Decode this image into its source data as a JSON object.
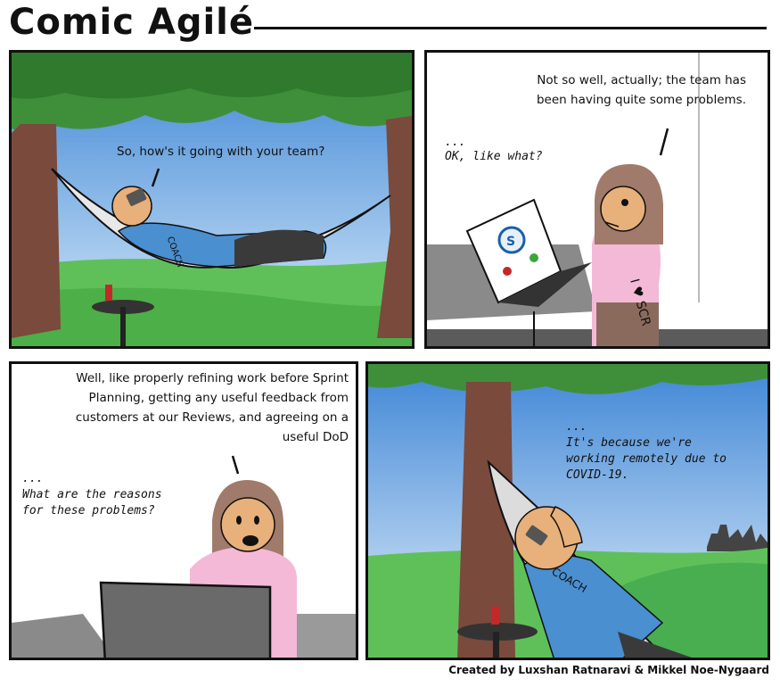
{
  "header": {
    "title": "Comic Agilé"
  },
  "panels": {
    "p1": {
      "speech": "So, how's it going with your team?",
      "shirt": "COACH"
    },
    "p2": {
      "speech": "Not so well, actually; the team has been having quite some problems.",
      "thought_dots": "...",
      "thought": "OK, like what?",
      "shirt": "I ♥ SCR",
      "screen_logo": "S"
    },
    "p3": {
      "speech": "Well, like properly refining work before Sprint Planning, getting any useful feedback from customers at our Reviews, and agreeing on a useful DoD",
      "thought_dots": "...",
      "thought": "What are the reasons for these problems?"
    },
    "p4": {
      "thought_dots": "...",
      "thought": "It's because we're working remotely due to COVID-19.",
      "shirt": "COACH"
    }
  },
  "footer": {
    "credit": "Created by Luxshan Ratnaravi & Mikkel Noe-Nygaard"
  },
  "colors": {
    "sky": "#5a9fe0",
    "grass": "#5fc05a",
    "trunk": "#7a4a3c",
    "leaves": "#3f8f3a",
    "skin": "#e8b07a",
    "shirt_blue": "#4a8fd0",
    "shirt_pink": "#f3b9d6",
    "hair": "#a07a6a"
  }
}
